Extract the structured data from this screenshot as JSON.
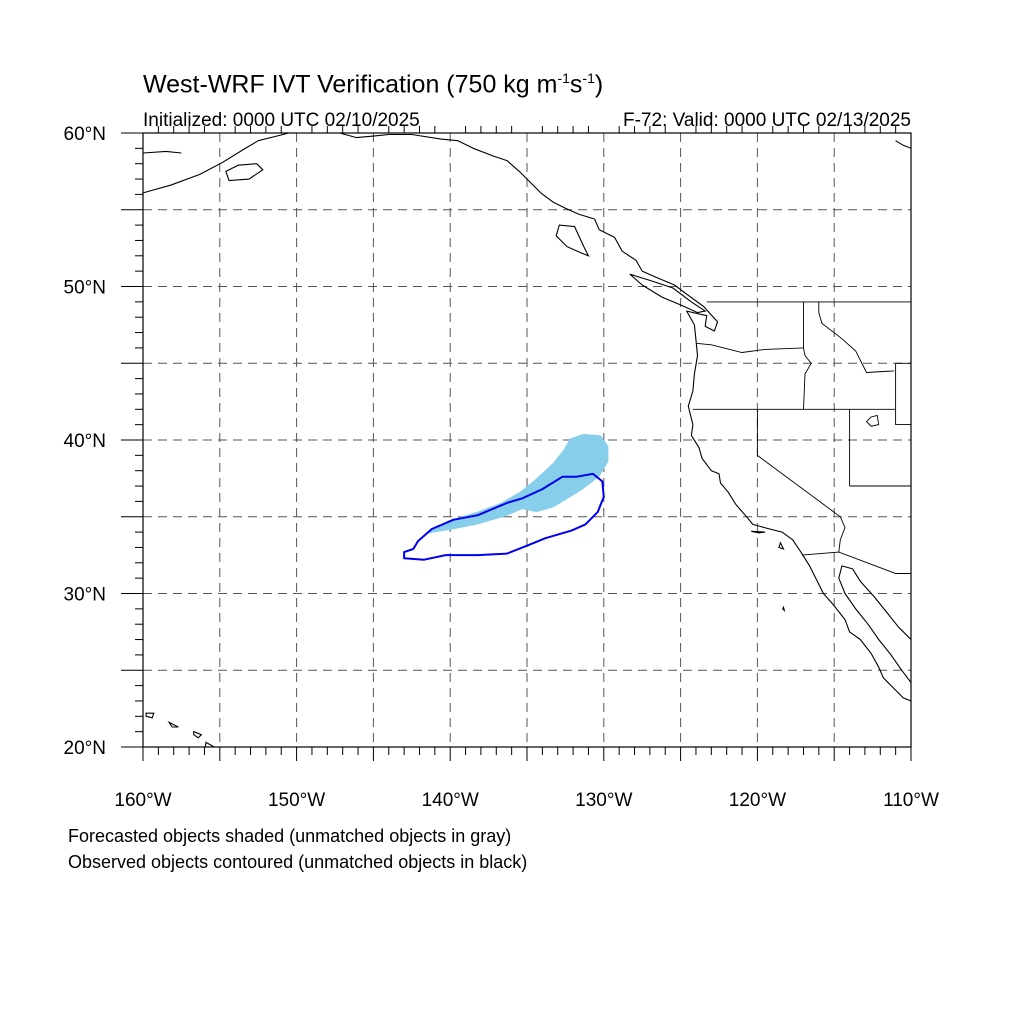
{
  "title": {
    "main": "West-WRF IVT Verification (750 kg m",
    "sup1": "-1",
    "mid": "s",
    "sup2": "-1",
    "end": ")"
  },
  "initialized": "Initialized: 0000 UTC 02/10/2025",
  "valid": "F-72: Valid: 0000 UTC 02/13/2025",
  "notes": {
    "forecast": "Forecasted objects shaded (unmatched objects in gray)",
    "observed": "Observed objects contoured (unmatched objects in black)"
  },
  "map": {
    "projection": "cylindrical equidistant",
    "lon_range": [
      -160,
      -110
    ],
    "lat_range": [
      20,
      60
    ],
    "lon_ticks": [
      "160°W",
      "150°W",
      "140°W",
      "130°W",
      "120°W",
      "110°W"
    ],
    "lat_ticks": [
      "20°N",
      "30°N",
      "40°N",
      "50°N",
      "60°N"
    ],
    "grid": "dashed every 5 degrees"
  },
  "colors": {
    "forecast_fill": "#87ceeb",
    "observed_contour": "#0000ee",
    "coastline": "#000000",
    "grid": "#555555"
  },
  "objects": {
    "forecast": {
      "label": "Forecasted object",
      "outline": [
        [
          -141.5,
          34.0
        ],
        [
          -140,
          34.8
        ],
        [
          -138.3,
          35.3
        ],
        [
          -136.7,
          35.9
        ],
        [
          -135.5,
          36.6
        ],
        [
          -134.5,
          37.4
        ],
        [
          -133.3,
          38.5
        ],
        [
          -132.6,
          39.4
        ],
        [
          -132.2,
          40.1
        ],
        [
          -131.3,
          40.4
        ],
        [
          -130.2,
          40.3
        ],
        [
          -129.7,
          39.6
        ],
        [
          -129.7,
          38.6
        ],
        [
          -130.3,
          37.6
        ],
        [
          -131.5,
          36.7
        ],
        [
          -133.3,
          35.6
        ],
        [
          -134.4,
          35.3
        ],
        [
          -135.3,
          35.5
        ],
        [
          -136.5,
          35.0
        ],
        [
          -138.2,
          34.5
        ],
        [
          -139.7,
          34.2
        ],
        [
          -141.5,
          33.9
        ]
      ]
    },
    "observed": {
      "label": "Observed object",
      "outline": [
        [
          -143.0,
          32.7
        ],
        [
          -142.4,
          32.9
        ],
        [
          -142.1,
          33.4
        ],
        [
          -141.2,
          34.2
        ],
        [
          -139.8,
          34.8
        ],
        [
          -138.2,
          35.1
        ],
        [
          -136.3,
          35.9
        ],
        [
          -135.3,
          36.2
        ],
        [
          -134.0,
          36.8
        ],
        [
          -132.7,
          37.6
        ],
        [
          -131.8,
          37.6
        ],
        [
          -130.7,
          37.8
        ],
        [
          -130.1,
          37.3
        ],
        [
          -130.0,
          36.3
        ],
        [
          -130.4,
          35.3
        ],
        [
          -131.2,
          34.5
        ],
        [
          -132.1,
          34.1
        ],
        [
          -133.8,
          33.6
        ],
        [
          -134.8,
          33.2
        ],
        [
          -136.3,
          32.6
        ],
        [
          -138.2,
          32.5
        ],
        [
          -140.3,
          32.5
        ],
        [
          -141.7,
          32.2
        ],
        [
          -143.0,
          32.3
        ],
        [
          -143.0,
          32.7
        ]
      ]
    }
  },
  "geography": {
    "coastlines": [
      [
        [
          -157.5,
          58.7
        ],
        [
          -158.5,
          58.8
        ],
        [
          -160,
          58.7
        ]
      ],
      [
        [
          -160,
          56.1
        ],
        [
          -158.2,
          56.6
        ],
        [
          -156.3,
          57.3
        ],
        [
          -154.8,
          58.1
        ],
        [
          -153.5,
          58.9
        ],
        [
          -152.5,
          59.5
        ],
        [
          -151.3,
          59.8
        ],
        [
          -150.5,
          60
        ]
      ],
      [
        [
          -149.2,
          60
        ],
        [
          -148.3,
          60
        ],
        [
          -147.2,
          60
        ],
        [
          -146.1,
          59.7
        ],
        [
          -145,
          59.8
        ],
        [
          -144,
          59.9
        ],
        [
          -142.5,
          59.9
        ],
        [
          -140.6,
          59.6
        ],
        [
          -139.5,
          59.5
        ],
        [
          -138.5,
          59.0
        ],
        [
          -137.2,
          58.5
        ],
        [
          -136.3,
          58.2
        ],
        [
          -135.5,
          57.5
        ],
        [
          -134.8,
          56.8
        ],
        [
          -134.1,
          56.1
        ],
        [
          -133.3,
          55.5
        ],
        [
          -132.5,
          55.1
        ],
        [
          -131.6,
          54.7
        ],
        [
          -130.6,
          54.4
        ],
        [
          -130.3,
          53.7
        ],
        [
          -129.3,
          53.2
        ],
        [
          -128.8,
          52.3
        ],
        [
          -127.9,
          51.7
        ],
        [
          -127.5,
          51.0
        ],
        [
          -126.6,
          50.6
        ],
        [
          -125.4,
          50.1
        ],
        [
          -124.6,
          49.5
        ],
        [
          -123.5,
          48.7
        ],
        [
          -122.6,
          47.7
        ],
        [
          -122.8,
          47.1
        ],
        [
          -123.4,
          47.4
        ],
        [
          -123.3,
          48.1
        ],
        [
          -124.6,
          48.4
        ],
        [
          -124.1,
          47.5
        ],
        [
          -124.0,
          46.5
        ],
        [
          -123.9,
          45.5
        ],
        [
          -124.1,
          44.3
        ],
        [
          -124.2,
          43.2
        ],
        [
          -124.5,
          42.2
        ],
        [
          -124.2,
          41.0
        ],
        [
          -124.3,
          40.3
        ],
        [
          -123.8,
          39.5
        ],
        [
          -123.6,
          38.8
        ],
        [
          -123.0,
          38.0
        ],
        [
          -122.5,
          37.8
        ],
        [
          -122.4,
          37.2
        ],
        [
          -121.9,
          36.6
        ],
        [
          -121.4,
          35.8
        ],
        [
          -120.7,
          35.0
        ],
        [
          -120.3,
          34.5
        ],
        [
          -119.2,
          34.2
        ],
        [
          -118.4,
          34.0
        ],
        [
          -117.7,
          33.5
        ],
        [
          -117.1,
          32.6
        ],
        [
          -116.6,
          31.8
        ],
        [
          -116.1,
          30.8
        ],
        [
          -115.7,
          30.0
        ],
        [
          -115.0,
          29.2
        ],
        [
          -114.3,
          28.3
        ],
        [
          -114.0,
          27.5
        ],
        [
          -113.3,
          27.0
        ],
        [
          -112.6,
          26.1
        ],
        [
          -112.1,
          25.2
        ],
        [
          -111.8,
          24.5
        ],
        [
          -110.5,
          23.2
        ],
        [
          -110,
          23
        ]
      ],
      [
        [
          -110,
          27.0
        ],
        [
          -110.8,
          27.8
        ],
        [
          -111.6,
          28.8
        ],
        [
          -112.4,
          29.8
        ],
        [
          -113.3,
          30.8
        ],
        [
          -113.8,
          31.6
        ],
        [
          -114.5,
          31.8
        ],
        [
          -114.7,
          31.0
        ],
        [
          -114.3,
          30.0
        ],
        [
          -113.6,
          29.0
        ],
        [
          -112.8,
          28.0
        ],
        [
          -112.1,
          27.0
        ],
        [
          -111.3,
          26.0
        ],
        [
          -110.6,
          25.0
        ],
        [
          -110,
          24.2
        ]
      ],
      [
        [
          -110,
          59.0
        ],
        [
          -110.5,
          59.2
        ],
        [
          -111,
          59.5
        ]
      ]
    ],
    "islands": [
      [
        [
          -131.9,
          53.9
        ],
        [
          -132.9,
          54.0
        ],
        [
          -133.1,
          53.3
        ],
        [
          -132.4,
          52.6
        ],
        [
          -131.5,
          52.2
        ],
        [
          -131.0,
          52.0
        ],
        [
          -131.3,
          52.6
        ],
        [
          -131.9,
          53.9
        ]
      ],
      [
        [
          -128.3,
          50.8
        ],
        [
          -127.0,
          50.4
        ],
        [
          -125.5,
          49.9
        ],
        [
          -124.3,
          49.0
        ],
        [
          -123.4,
          48.4
        ],
        [
          -123.9,
          48.3
        ],
        [
          -125.0,
          48.8
        ],
        [
          -126.2,
          49.3
        ],
        [
          -127.5,
          50.1
        ],
        [
          -128.3,
          50.8
        ]
      ],
      [
        [
          -153.8,
          57.9
        ],
        [
          -152.6,
          58.0
        ],
        [
          -152.2,
          57.6
        ],
        [
          -153.1,
          57.0
        ],
        [
          -154.4,
          56.9
        ],
        [
          -154.6,
          57.5
        ],
        [
          -153.8,
          57.9
        ]
      ],
      [
        [
          -155.9,
          20.3
        ],
        [
          -155.0,
          19.8
        ],
        [
          -155.1,
          19.2
        ],
        [
          -155.7,
          19.0
        ],
        [
          -156.0,
          19.6
        ],
        [
          -155.9,
          20.3
        ]
      ],
      [
        [
          -156.7,
          21.0
        ],
        [
          -156.2,
          20.8
        ],
        [
          -156.4,
          20.6
        ],
        [
          -156.7,
          20.8
        ],
        [
          -156.7,
          21.0
        ]
      ],
      [
        [
          -158.3,
          21.6
        ],
        [
          -157.7,
          21.3
        ],
        [
          -158.1,
          21.3
        ],
        [
          -158.3,
          21.6
        ]
      ],
      [
        [
          -159.8,
          22.2
        ],
        [
          -159.3,
          22.2
        ],
        [
          -159.4,
          21.9
        ],
        [
          -159.8,
          22.0
        ],
        [
          -159.8,
          22.2
        ]
      ],
      [
        [
          -118.6,
          33.0
        ],
        [
          -118.3,
          32.9
        ],
        [
          -118.5,
          33.3
        ],
        [
          -118.6,
          33.0
        ]
      ],
      [
        [
          -120.4,
          34.05
        ],
        [
          -119.5,
          34.0
        ],
        [
          -119.9,
          33.95
        ],
        [
          -120.4,
          34.05
        ]
      ],
      [
        [
          -118.3,
          29.1
        ],
        [
          -118.25,
          28.9
        ],
        [
          -118.35,
          29.0
        ],
        [
          -118.3,
          29.1
        ]
      ]
    ],
    "boundaries": [
      [
        [
          -123.3,
          49.0
        ],
        [
          -110,
          49.0
        ]
      ],
      [
        [
          -117.0,
          49.0
        ],
        [
          -117.0,
          46.0
        ],
        [
          -116.9,
          45.5
        ],
        [
          -116.5,
          45.0
        ],
        [
          -116.9,
          44.3
        ],
        [
          -117.0,
          42.0
        ]
      ],
      [
        [
          -124.0,
          46.3
        ],
        [
          -123.0,
          46.2
        ],
        [
          -121.0,
          45.7
        ],
        [
          -119.5,
          45.9
        ],
        [
          -117.0,
          46.0
        ]
      ],
      [
        [
          -124.2,
          42.0
        ],
        [
          -111.0,
          42.0
        ]
      ],
      [
        [
          -120.0,
          42.0
        ],
        [
          -120.0,
          39.0
        ],
        [
          -114.6,
          35.0
        ]
      ],
      [
        [
          -114.0,
          42.0
        ],
        [
          -114.0,
          37.0
        ]
      ],
      [
        [
          -114.0,
          37.0
        ],
        [
          -110,
          37.0
        ]
      ],
      [
        [
          -111.0,
          45.0
        ],
        [
          -111.0,
          41.0
        ],
        [
          -110,
          41.0
        ]
      ],
      [
        [
          -111.0,
          45.0
        ],
        [
          -110,
          45.0
        ]
      ],
      [
        [
          -116.0,
          49.0
        ],
        [
          -116.0,
          48.3
        ],
        [
          -115.8,
          47.6
        ],
        [
          -114.5,
          46.6
        ],
        [
          -113.6,
          45.8
        ],
        [
          -112.9,
          44.4
        ],
        [
          -111.1,
          44.5
        ]
      ],
      [
        [
          -117.1,
          32.5
        ],
        [
          -114.7,
          32.7
        ],
        [
          -111.0,
          31.3
        ],
        [
          -110,
          31.3
        ]
      ],
      [
        [
          -114.7,
          32.7
        ],
        [
          -114.6,
          33.5
        ],
        [
          -114.3,
          34.3
        ],
        [
          -114.6,
          35.0
        ]
      ]
    ],
    "lakes": [
      [
        [
          -112.6,
          41.5
        ],
        [
          -112.2,
          41.6
        ],
        [
          -112.1,
          41.0
        ],
        [
          -112.6,
          40.9
        ],
        [
          -112.9,
          41.2
        ],
        [
          -112.6,
          41.5
        ]
      ]
    ]
  }
}
